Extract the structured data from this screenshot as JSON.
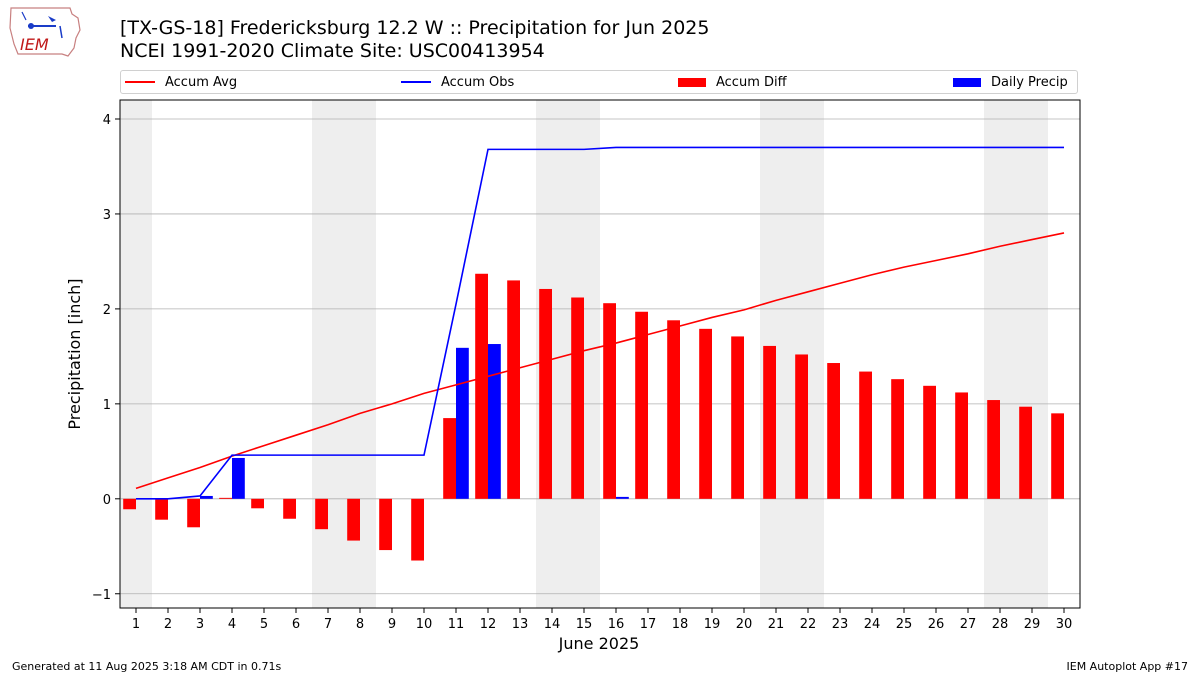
{
  "title_line1": "[TX-GS-18] Fredericksburg 12.2 W :: Precipitation for Jun 2025",
  "title_line2": "NCEI 1991-2020 Climate Site: USC00413954",
  "logo_text": "IEM",
  "legend": {
    "accum_avg": "Accum Avg",
    "accum_obs": "Accum Obs",
    "accum_diff": "Accum Diff",
    "daily_precip": "Daily Precip"
  },
  "footer": {
    "generated": "Generated at 11 Aug 2025 3:18 AM CDT in 0.71s",
    "app": "IEM Autoplot App #17"
  },
  "colors": {
    "avg": "#ff0000",
    "obs": "#0000ff",
    "diff": "#ff0000",
    "daily": "#0000ff",
    "weekend_shade": "#eeeeee",
    "grid": "#b0b0b0"
  },
  "chart_data": {
    "type": "bar",
    "xlabel": "June 2025",
    "ylabel": "Precipitation [inch]",
    "xlim": [
      0.5,
      30.5
    ],
    "ylim": [
      -1.15,
      4.2
    ],
    "yticks": [
      -1,
      0,
      1,
      2,
      3,
      4
    ],
    "grid": true,
    "legend_position": "top",
    "days": [
      1,
      2,
      3,
      4,
      5,
      6,
      7,
      8,
      9,
      10,
      11,
      12,
      13,
      14,
      15,
      16,
      17,
      18,
      19,
      20,
      21,
      22,
      23,
      24,
      25,
      26,
      27,
      28,
      29,
      30
    ],
    "weekend_shading": [
      [
        0.5,
        1.5
      ],
      [
        6.5,
        8.5
      ],
      [
        13.5,
        15.5
      ],
      [
        20.5,
        22.5
      ],
      [
        27.5,
        29.5
      ]
    ],
    "series": [
      {
        "name": "Accum Avg",
        "kind": "line",
        "values": [
          0.11,
          0.22,
          0.33,
          0.45,
          0.56,
          0.67,
          0.78,
          0.9,
          1.0,
          1.11,
          1.2,
          1.29,
          1.38,
          1.47,
          1.56,
          1.64,
          1.73,
          1.82,
          1.91,
          1.99,
          2.09,
          2.18,
          2.27,
          2.36,
          2.44,
          2.51,
          2.58,
          2.66,
          2.73,
          2.8
        ]
      },
      {
        "name": "Accum Obs",
        "kind": "line",
        "values": [
          0.0,
          0.0,
          0.03,
          0.46,
          0.46,
          0.46,
          0.46,
          0.46,
          0.46,
          0.46,
          2.05,
          3.68,
          3.68,
          3.68,
          3.68,
          3.7,
          3.7,
          3.7,
          3.7,
          3.7,
          3.7,
          3.7,
          3.7,
          3.7,
          3.7,
          3.7,
          3.7,
          3.7,
          3.7,
          3.7
        ]
      },
      {
        "name": "Accum Diff",
        "kind": "bar",
        "values": [
          -0.11,
          -0.22,
          -0.3,
          0.01,
          -0.1,
          -0.21,
          -0.32,
          -0.44,
          -0.54,
          -0.65,
          0.85,
          2.37,
          2.3,
          2.21,
          2.12,
          2.06,
          1.97,
          1.88,
          1.79,
          1.71,
          1.61,
          1.52,
          1.43,
          1.34,
          1.26,
          1.19,
          1.12,
          1.04,
          0.97,
          0.9
        ]
      },
      {
        "name": "Daily Precip",
        "kind": "bar",
        "values": [
          0.0,
          0.0,
          0.03,
          0.43,
          0.0,
          0.0,
          0.0,
          0.0,
          0.0,
          0.0,
          1.59,
          1.63,
          0.0,
          0.0,
          0.0,
          0.02,
          0.0,
          0.0,
          0.0,
          0.0,
          0.0,
          0.0,
          0.0,
          0.0,
          0.0,
          0.0,
          0.0,
          0.0,
          0.0,
          0.0
        ]
      }
    ]
  }
}
